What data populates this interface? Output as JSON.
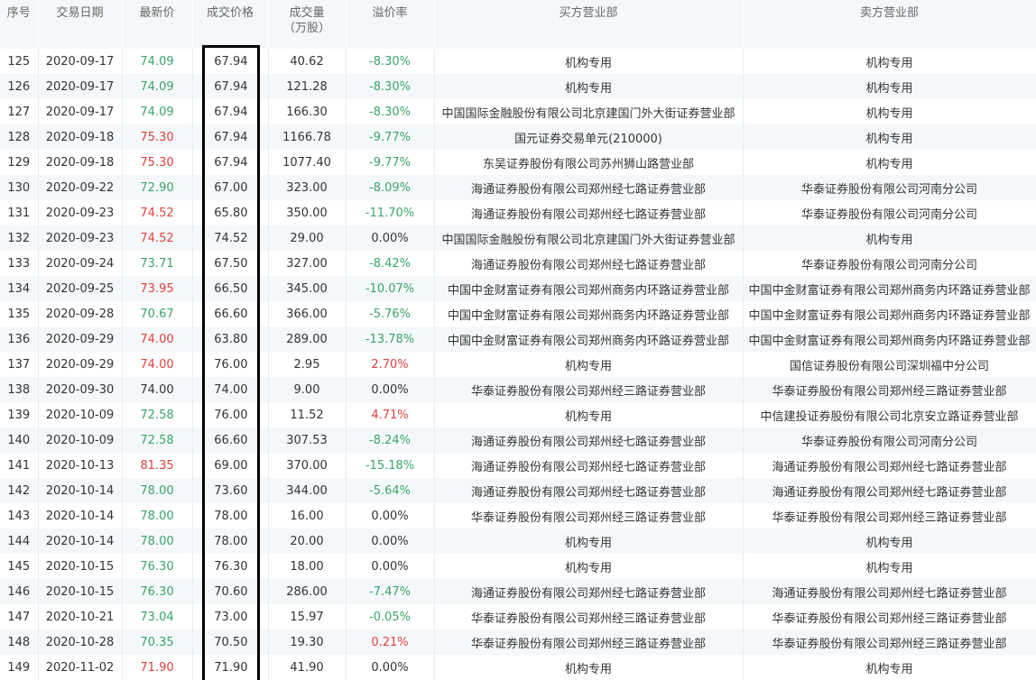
{
  "headers": [
    "序号",
    "交易日期",
    "最新价",
    "成交价格",
    "成交量\n（万股）",
    "溢价率",
    "买方营业部",
    "卖方营业部"
  ],
  "colors": {
    "up": "#e0413f",
    "down": "#3aa46a",
    "flat": "#333333",
    "highlight_box": "#000000"
  },
  "highlighted_column": "成交价格",
  "rows": [
    {
      "no": "125",
      "date": "2020-09-17",
      "latest": "74.09",
      "lc": "green",
      "price": "67.94",
      "volume": "40.62",
      "premium": "-8.30%",
      "pc": "green",
      "buyer": "机构专用",
      "seller": "机构专用"
    },
    {
      "no": "126",
      "date": "2020-09-17",
      "latest": "74.09",
      "lc": "green",
      "price": "67.94",
      "volume": "121.28",
      "premium": "-8.30%",
      "pc": "green",
      "buyer": "机构专用",
      "seller": "机构专用"
    },
    {
      "no": "127",
      "date": "2020-09-17",
      "latest": "74.09",
      "lc": "green",
      "price": "67.94",
      "volume": "166.30",
      "premium": "-8.30%",
      "pc": "green",
      "buyer": "中国国际金融股份有限公司北京建国门外大街证券营业部",
      "seller": "机构专用"
    },
    {
      "no": "128",
      "date": "2020-09-18",
      "latest": "75.30",
      "lc": "red",
      "price": "67.94",
      "volume": "1166.78",
      "premium": "-9.77%",
      "pc": "green",
      "buyer": "国元证券交易单元(210000)",
      "seller": "机构专用"
    },
    {
      "no": "129",
      "date": "2020-09-18",
      "latest": "75.30",
      "lc": "red",
      "price": "67.94",
      "volume": "1077.40",
      "premium": "-9.77%",
      "pc": "green",
      "buyer": "东吴证券股份有限公司苏州狮山路营业部",
      "seller": "机构专用"
    },
    {
      "no": "130",
      "date": "2020-09-22",
      "latest": "72.90",
      "lc": "green",
      "price": "67.00",
      "volume": "323.00",
      "premium": "-8.09%",
      "pc": "green",
      "buyer": "海通证券股份有限公司郑州经七路证券营业部",
      "seller": "华泰证券股份有限公司河南分公司"
    },
    {
      "no": "131",
      "date": "2020-09-23",
      "latest": "74.52",
      "lc": "red",
      "price": "65.80",
      "volume": "350.00",
      "premium": "-11.70%",
      "pc": "green",
      "buyer": "海通证券股份有限公司郑州经七路证券营业部",
      "seller": "华泰证券股份有限公司河南分公司"
    },
    {
      "no": "132",
      "date": "2020-09-23",
      "latest": "74.52",
      "lc": "red",
      "price": "74.52",
      "volume": "29.00",
      "premium": "0.00%",
      "pc": "black",
      "buyer": "中国国际金融股份有限公司北京建国门外大街证券营业部",
      "seller": "机构专用"
    },
    {
      "no": "133",
      "date": "2020-09-24",
      "latest": "73.71",
      "lc": "green",
      "price": "67.50",
      "volume": "327.00",
      "premium": "-8.42%",
      "pc": "green",
      "buyer": "海通证券股份有限公司郑州经七路证券营业部",
      "seller": "华泰证券股份有限公司河南分公司"
    },
    {
      "no": "134",
      "date": "2020-09-25",
      "latest": "73.95",
      "lc": "red",
      "price": "66.50",
      "volume": "345.00",
      "premium": "-10.07%",
      "pc": "green",
      "buyer": "中国中金财富证券有限公司郑州商务内环路证券营业部",
      "seller": "中国中金财富证券有限公司郑州商务内环路证券营业部"
    },
    {
      "no": "135",
      "date": "2020-09-28",
      "latest": "70.67",
      "lc": "green",
      "price": "66.60",
      "volume": "366.00",
      "premium": "-5.76%",
      "pc": "green",
      "buyer": "中国中金财富证券有限公司郑州商务内环路证券营业部",
      "seller": "中国中金财富证券有限公司郑州商务内环路证券营业部"
    },
    {
      "no": "136",
      "date": "2020-09-29",
      "latest": "74.00",
      "lc": "red",
      "price": "63.80",
      "volume": "289.00",
      "premium": "-13.78%",
      "pc": "green",
      "buyer": "中国中金财富证券有限公司郑州商务内环路证券营业部",
      "seller": "中国中金财富证券有限公司郑州商务内环路证券营业部"
    },
    {
      "no": "137",
      "date": "2020-09-29",
      "latest": "74.00",
      "lc": "red",
      "price": "76.00",
      "volume": "2.95",
      "premium": "2.70%",
      "pc": "red",
      "buyer": "机构专用",
      "seller": "国信证券股份有限公司深圳福中分公司"
    },
    {
      "no": "138",
      "date": "2020-09-30",
      "latest": "74.00",
      "lc": "black",
      "price": "74.00",
      "volume": "9.00",
      "premium": "0.00%",
      "pc": "black",
      "buyer": "华泰证券股份有限公司郑州经三路证券营业部",
      "seller": "华泰证券股份有限公司郑州经三路证券营业部"
    },
    {
      "no": "139",
      "date": "2020-10-09",
      "latest": "72.58",
      "lc": "green",
      "price": "76.00",
      "volume": "11.52",
      "premium": "4.71%",
      "pc": "red",
      "buyer": "机构专用",
      "seller": "中信建投证券股份有限公司北京安立路证券营业部"
    },
    {
      "no": "140",
      "date": "2020-10-09",
      "latest": "72.58",
      "lc": "green",
      "price": "66.60",
      "volume": "307.53",
      "premium": "-8.24%",
      "pc": "green",
      "buyer": "海通证券股份有限公司郑州经七路证券营业部",
      "seller": "华泰证券股份有限公司河南分公司"
    },
    {
      "no": "141",
      "date": "2020-10-13",
      "latest": "81.35",
      "lc": "red",
      "price": "69.00",
      "volume": "370.00",
      "premium": "-15.18%",
      "pc": "green",
      "buyer": "海通证券股份有限公司郑州经七路证券营业部",
      "seller": "海通证券股份有限公司郑州经七路证券营业部"
    },
    {
      "no": "142",
      "date": "2020-10-14",
      "latest": "78.00",
      "lc": "green",
      "price": "73.60",
      "volume": "344.00",
      "premium": "-5.64%",
      "pc": "green",
      "buyer": "海通证券股份有限公司郑州经七路证券营业部",
      "seller": "海通证券股份有限公司郑州经七路证券营业部"
    },
    {
      "no": "143",
      "date": "2020-10-14",
      "latest": "78.00",
      "lc": "green",
      "price": "78.00",
      "volume": "16.00",
      "premium": "0.00%",
      "pc": "black",
      "buyer": "华泰证券股份有限公司郑州经三路证券营业部",
      "seller": "华泰证券股份有限公司郑州经三路证券营业部"
    },
    {
      "no": "144",
      "date": "2020-10-14",
      "latest": "78.00",
      "lc": "green",
      "price": "78.00",
      "volume": "20.00",
      "premium": "0.00%",
      "pc": "black",
      "buyer": "机构专用",
      "seller": "机构专用"
    },
    {
      "no": "145",
      "date": "2020-10-15",
      "latest": "76.30",
      "lc": "green",
      "price": "76.30",
      "volume": "18.00",
      "premium": "0.00%",
      "pc": "black",
      "buyer": "机构专用",
      "seller": "机构专用"
    },
    {
      "no": "146",
      "date": "2020-10-15",
      "latest": "76.30",
      "lc": "green",
      "price": "70.60",
      "volume": "286.00",
      "premium": "-7.47%",
      "pc": "green",
      "buyer": "海通证券股份有限公司郑州经七路证券营业部",
      "seller": "海通证券股份有限公司郑州经七路证券营业部"
    },
    {
      "no": "147",
      "date": "2020-10-21",
      "latest": "73.04",
      "lc": "green",
      "price": "73.00",
      "volume": "15.97",
      "premium": "-0.05%",
      "pc": "green",
      "buyer": "华泰证券股份有限公司郑州经三路证券营业部",
      "seller": "华泰证券股份有限公司郑州经三路证券营业部"
    },
    {
      "no": "148",
      "date": "2020-10-28",
      "latest": "70.35",
      "lc": "green",
      "price": "70.50",
      "volume": "19.30",
      "premium": "0.21%",
      "pc": "red",
      "buyer": "华泰证券股份有限公司郑州经三路证券营业部",
      "seller": "华泰证券股份有限公司郑州经三路证券营业部"
    },
    {
      "no": "149",
      "date": "2020-11-02",
      "latest": "71.90",
      "lc": "red",
      "price": "71.90",
      "volume": "41.90",
      "premium": "0.00%",
      "pc": "black",
      "buyer": "机构专用",
      "seller": "机构专用"
    }
  ]
}
